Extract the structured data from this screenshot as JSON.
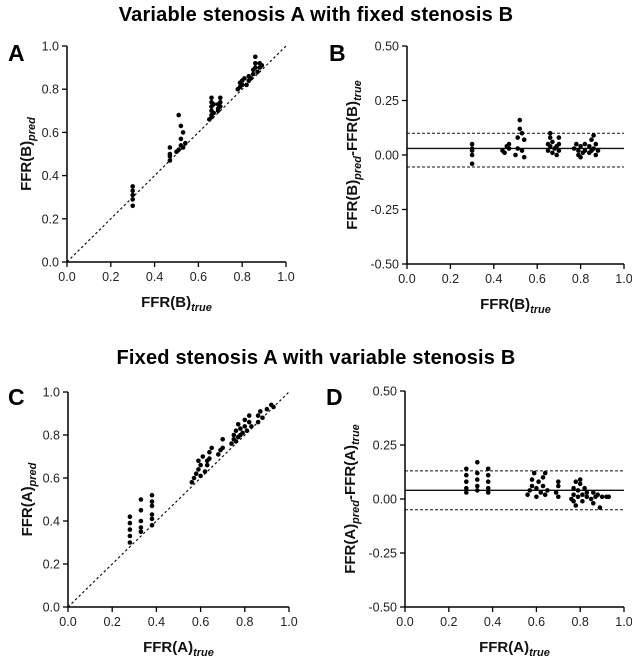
{
  "titles": {
    "top": "Variable stenosis A with fixed stenosis B",
    "bottom": "Fixed stenosis A with variable stenosis B"
  },
  "chart_data": [
    {
      "panel": "A",
      "type": "scatter",
      "xlabel": {
        "base": "FFR(B)",
        "sub": "true"
      },
      "ylabel": {
        "base": "FFR(B)",
        "sub": "pred"
      },
      "xlim": [
        0.0,
        1.0
      ],
      "ylim": [
        0.0,
        1.0
      ],
      "xticks": [
        "0.0",
        "0.2",
        "0.4",
        "0.6",
        "0.8",
        "1.0"
      ],
      "yticks": [
        "0.0",
        "0.2",
        "0.4",
        "0.6",
        "0.8",
        "1.0"
      ],
      "identity_line": true,
      "points": [
        [
          0.3,
          0.26
        ],
        [
          0.3,
          0.29
        ],
        [
          0.3,
          0.31
        ],
        [
          0.3,
          0.33
        ],
        [
          0.3,
          0.35
        ],
        [
          0.47,
          0.47
        ],
        [
          0.47,
          0.49
        ],
        [
          0.47,
          0.5
        ],
        [
          0.47,
          0.53
        ],
        [
          0.5,
          0.51
        ],
        [
          0.51,
          0.52
        ],
        [
          0.52,
          0.54
        ],
        [
          0.52,
          0.57
        ],
        [
          0.53,
          0.53
        ],
        [
          0.53,
          0.6
        ],
        [
          0.52,
          0.63
        ],
        [
          0.51,
          0.68
        ],
        [
          0.54,
          0.55
        ],
        [
          0.65,
          0.66
        ],
        [
          0.66,
          0.67
        ],
        [
          0.66,
          0.68
        ],
        [
          0.66,
          0.7
        ],
        [
          0.66,
          0.72
        ],
        [
          0.66,
          0.74
        ],
        [
          0.66,
          0.76
        ],
        [
          0.67,
          0.69
        ],
        [
          0.67,
          0.73
        ],
        [
          0.69,
          0.7
        ],
        [
          0.69,
          0.71
        ],
        [
          0.69,
          0.73
        ],
        [
          0.7,
          0.74
        ],
        [
          0.7,
          0.76
        ],
        [
          0.7,
          0.72
        ],
        [
          0.78,
          0.8
        ],
        [
          0.79,
          0.81
        ],
        [
          0.79,
          0.83
        ],
        [
          0.8,
          0.82
        ],
        [
          0.8,
          0.84
        ],
        [
          0.81,
          0.85
        ],
        [
          0.82,
          0.82
        ],
        [
          0.83,
          0.84
        ],
        [
          0.83,
          0.86
        ],
        [
          0.84,
          0.85
        ],
        [
          0.85,
          0.87
        ],
        [
          0.85,
          0.89
        ],
        [
          0.86,
          0.9
        ],
        [
          0.86,
          0.92
        ],
        [
          0.86,
          0.95
        ],
        [
          0.87,
          0.88
        ],
        [
          0.88,
          0.9
        ],
        [
          0.88,
          0.92
        ],
        [
          0.89,
          0.91
        ]
      ]
    },
    {
      "panel": "B",
      "type": "scatter",
      "xlabel": {
        "base": "FFR(B)",
        "sub": "true"
      },
      "ylabel": {
        "base": "FFR(B)",
        "sub": "pred",
        "base2": "-FFR(B)",
        "sub2": "true"
      },
      "xlim": [
        0.0,
        1.0
      ],
      "ylim": [
        -0.5,
        0.5
      ],
      "xticks": [
        "0.0",
        "0.2",
        "0.4",
        "0.6",
        "0.8",
        "1.0"
      ],
      "yticks": [
        "-0.50",
        "-0.25",
        "0.00",
        "0.25",
        "0.50"
      ],
      "mean_line": 0.03,
      "limit_lines": [
        -0.055,
        0.1
      ],
      "points": [
        [
          0.3,
          -0.04
        ],
        [
          0.3,
          0.0
        ],
        [
          0.3,
          0.02
        ],
        [
          0.3,
          0.03
        ],
        [
          0.3,
          0.05
        ],
        [
          0.44,
          0.02
        ],
        [
          0.45,
          0.01
        ],
        [
          0.46,
          0.04
        ],
        [
          0.47,
          0.03
        ],
        [
          0.47,
          0.05
        ],
        [
          0.5,
          0.0
        ],
        [
          0.51,
          0.03
        ],
        [
          0.51,
          0.08
        ],
        [
          0.52,
          0.12
        ],
        [
          0.52,
          0.16
        ],
        [
          0.53,
          0.1
        ],
        [
          0.53,
          0.02
        ],
        [
          0.54,
          0.07
        ],
        [
          0.54,
          -0.01
        ],
        [
          0.65,
          0.02
        ],
        [
          0.65,
          0.05
        ],
        [
          0.66,
          0.08
        ],
        [
          0.66,
          0.1
        ],
        [
          0.66,
          0.04
        ],
        [
          0.67,
          0.01
        ],
        [
          0.67,
          0.06
        ],
        [
          0.68,
          0.03
        ],
        [
          0.69,
          0.0
        ],
        [
          0.69,
          0.04
        ],
        [
          0.7,
          0.08
        ],
        [
          0.7,
          0.05
        ],
        [
          0.7,
          0.02
        ],
        [
          0.77,
          0.03
        ],
        [
          0.78,
          0.05
        ],
        [
          0.79,
          0.0
        ],
        [
          0.79,
          0.02
        ],
        [
          0.8,
          0.04
        ],
        [
          0.8,
          -0.01
        ],
        [
          0.81,
          0.01
        ],
        [
          0.82,
          0.02
        ],
        [
          0.82,
          0.05
        ],
        [
          0.84,
          0.01
        ],
        [
          0.84,
          0.04
        ],
        [
          0.85,
          0.02
        ],
        [
          0.85,
          0.07
        ],
        [
          0.86,
          0.09
        ],
        [
          0.86,
          0.03
        ],
        [
          0.87,
          0.0
        ],
        [
          0.87,
          0.05
        ],
        [
          0.88,
          0.02
        ]
      ]
    },
    {
      "panel": "C",
      "type": "scatter",
      "xlabel": {
        "base": "FFR(A)",
        "sub": "true"
      },
      "ylabel": {
        "base": "FFR(A)",
        "sub": "pred"
      },
      "xlim": [
        0.0,
        1.0
      ],
      "ylim": [
        0.0,
        1.0
      ],
      "xticks": [
        "0.0",
        "0.2",
        "0.4",
        "0.6",
        "0.8",
        "1.0"
      ],
      "yticks": [
        "0.0",
        "0.2",
        "0.4",
        "0.6",
        "0.8",
        "1.0"
      ],
      "identity_line": true,
      "points": [
        [
          0.28,
          0.3
        ],
        [
          0.28,
          0.33
        ],
        [
          0.28,
          0.36
        ],
        [
          0.28,
          0.39
        ],
        [
          0.28,
          0.42
        ],
        [
          0.33,
          0.35
        ],
        [
          0.33,
          0.37
        ],
        [
          0.33,
          0.4
        ],
        [
          0.33,
          0.45
        ],
        [
          0.33,
          0.5
        ],
        [
          0.38,
          0.38
        ],
        [
          0.38,
          0.41
        ],
        [
          0.38,
          0.43
        ],
        [
          0.38,
          0.47
        ],
        [
          0.38,
          0.49
        ],
        [
          0.38,
          0.52
        ],
        [
          0.56,
          0.58
        ],
        [
          0.57,
          0.6
        ],
        [
          0.58,
          0.62
        ],
        [
          0.59,
          0.64
        ],
        [
          0.59,
          0.68
        ],
        [
          0.6,
          0.61
        ],
        [
          0.6,
          0.66
        ],
        [
          0.61,
          0.7
        ],
        [
          0.62,
          0.63
        ],
        [
          0.63,
          0.66
        ],
        [
          0.63,
          0.68
        ],
        [
          0.64,
          0.72
        ],
        [
          0.64,
          0.69
        ],
        [
          0.65,
          0.74
        ],
        [
          0.68,
          0.71
        ],
        [
          0.69,
          0.73
        ],
        [
          0.7,
          0.74
        ],
        [
          0.7,
          0.78
        ],
        [
          0.74,
          0.76
        ],
        [
          0.75,
          0.78
        ],
        [
          0.75,
          0.8
        ],
        [
          0.76,
          0.77
        ],
        [
          0.76,
          0.82
        ],
        [
          0.77,
          0.79
        ],
        [
          0.77,
          0.85
        ],
        [
          0.78,
          0.8
        ],
        [
          0.78,
          0.83
        ],
        [
          0.79,
          0.81
        ],
        [
          0.8,
          0.84
        ],
        [
          0.8,
          0.87
        ],
        [
          0.81,
          0.82
        ],
        [
          0.82,
          0.86
        ],
        [
          0.82,
          0.89
        ],
        [
          0.83,
          0.84
        ],
        [
          0.86,
          0.86
        ],
        [
          0.86,
          0.89
        ],
        [
          0.87,
          0.91
        ],
        [
          0.88,
          0.88
        ],
        [
          0.9,
          0.92
        ],
        [
          0.92,
          0.94
        ],
        [
          0.93,
          0.93
        ]
      ]
    },
    {
      "panel": "D",
      "type": "scatter",
      "xlabel": {
        "base": "FFR(A)",
        "sub": "true"
      },
      "ylabel": {
        "base": "FFR(A)",
        "sub": "pred",
        "base2": "-FFR(A)",
        "sub2": "true"
      },
      "xlim": [
        0.0,
        1.0
      ],
      "ylim": [
        -0.5,
        0.5
      ],
      "xticks": [
        "0.0",
        "0.2",
        "0.4",
        "0.6",
        "0.8",
        "1.0"
      ],
      "yticks": [
        "-0.50",
        "-0.25",
        "0.00",
        "0.25",
        "0.50"
      ],
      "mean_line": 0.04,
      "limit_lines": [
        -0.05,
        0.13
      ],
      "points": [
        [
          0.28,
          0.03
        ],
        [
          0.28,
          0.05
        ],
        [
          0.28,
          0.08
        ],
        [
          0.28,
          0.11
        ],
        [
          0.28,
          0.14
        ],
        [
          0.33,
          0.04
        ],
        [
          0.33,
          0.06
        ],
        [
          0.33,
          0.09
        ],
        [
          0.33,
          0.12
        ],
        [
          0.33,
          0.17
        ],
        [
          0.38,
          0.03
        ],
        [
          0.38,
          0.05
        ],
        [
          0.38,
          0.08
        ],
        [
          0.38,
          0.11
        ],
        [
          0.38,
          0.14
        ],
        [
          0.56,
          0.02
        ],
        [
          0.57,
          0.04
        ],
        [
          0.58,
          0.06
        ],
        [
          0.58,
          0.09
        ],
        [
          0.59,
          0.12
        ],
        [
          0.6,
          0.01
        ],
        [
          0.6,
          0.05
        ],
        [
          0.61,
          0.08
        ],
        [
          0.62,
          0.03
        ],
        [
          0.63,
          0.06
        ],
        [
          0.63,
          0.1
        ],
        [
          0.64,
          0.12
        ],
        [
          0.64,
          0.02
        ],
        [
          0.65,
          0.04
        ],
        [
          0.69,
          0.03
        ],
        [
          0.7,
          0.01
        ],
        [
          0.7,
          0.06
        ],
        [
          0.7,
          0.08
        ],
        [
          0.76,
          0.0
        ],
        [
          0.77,
          -0.01
        ],
        [
          0.77,
          0.02
        ],
        [
          0.77,
          0.05
        ],
        [
          0.78,
          0.08
        ],
        [
          0.78,
          -0.03
        ],
        [
          0.79,
          0.01
        ],
        [
          0.79,
          0.04
        ],
        [
          0.8,
          0.07
        ],
        [
          0.8,
          0.09
        ],
        [
          0.81,
          0.02
        ],
        [
          0.81,
          -0.01
        ],
        [
          0.82,
          0.05
        ],
        [
          0.83,
          0.01
        ],
        [
          0.83,
          0.03
        ],
        [
          0.85,
          0.0
        ],
        [
          0.86,
          -0.02
        ],
        [
          0.86,
          0.03
        ],
        [
          0.87,
          0.01
        ],
        [
          0.88,
          0.02
        ],
        [
          0.89,
          -0.04
        ],
        [
          0.9,
          0.01
        ],
        [
          0.92,
          0.01
        ],
        [
          0.93,
          0.01
        ]
      ]
    }
  ]
}
